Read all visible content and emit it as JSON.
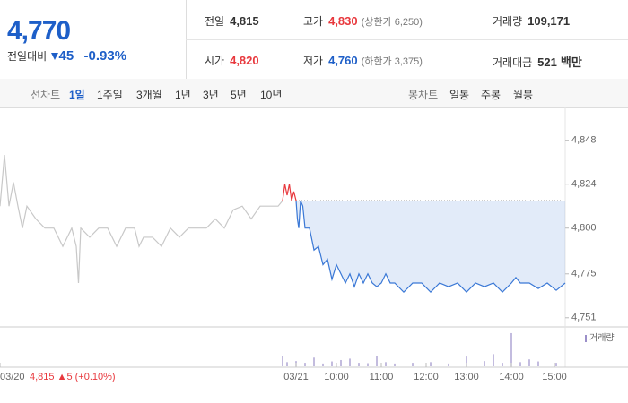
{
  "header": {
    "price": "4,770",
    "change_label": "전일대비",
    "change": "45",
    "change_pct": "-0.93%",
    "stats": [
      [
        {
          "label": "전일",
          "value": "4,815"
        },
        {
          "label": "고가",
          "value": "4,830",
          "note": "(상한가 6,250)"
        },
        {
          "label": "거래량",
          "value": "109,171"
        }
      ],
      [
        {
          "label": "시가",
          "value": "4,820"
        },
        {
          "label": "저가",
          "value": "4,760",
          "note": "(하한가 3,375)"
        },
        {
          "label": "거래대금",
          "value": "521",
          "unit": "백만"
        }
      ]
    ]
  },
  "tabs": {
    "line_label": "선차트",
    "line_tabs": [
      "1일",
      "1주일",
      "3개월",
      "1년",
      "3년",
      "5년",
      "10년"
    ],
    "candle_label": "봉차트",
    "candle_tabs": [
      "일봉",
      "주봉",
      "월봉"
    ]
  },
  "chart_data": {
    "type": "line",
    "ylim": [
      4746,
      4864
    ],
    "yticks": [
      {
        "value": 4751,
        "label": "4,751"
      },
      {
        "value": 4775,
        "label": "4,775"
      },
      {
        "value": 4800,
        "label": "4,800"
      },
      {
        "value": 4824,
        "label": "4,824"
      },
      {
        "value": 4848,
        "label": "4,848"
      }
    ],
    "xlim": [
      0,
      126
    ],
    "xticks": [
      {
        "value": 0,
        "label": "03/20"
      },
      {
        "value": 66,
        "label": "03/21"
      },
      {
        "value": 75,
        "label": "10:00"
      },
      {
        "value": 85,
        "label": "11:00"
      },
      {
        "value": 95,
        "label": "12:00"
      },
      {
        "value": 104,
        "label": "13:00"
      },
      {
        "value": 114,
        "label": "14:00"
      },
      {
        "value": 123.6,
        "label": "15:00"
      }
    ],
    "reference_line": 4815,
    "prev_day_summary": "4,815 ▲5 (+0.10%)",
    "series": [
      {
        "color": "#c8c8c8",
        "x": [
          0,
          1,
          2,
          3,
          4,
          5,
          6,
          8,
          10,
          12,
          14,
          16,
          17,
          17.5,
          18,
          20,
          22,
          24,
          26,
          28,
          30,
          31,
          32,
          34,
          36,
          38,
          40,
          42,
          44,
          46,
          48,
          50,
          52,
          54,
          56,
          58,
          60,
          62,
          63
        ],
        "values": [
          4812,
          4840,
          4812,
          4825,
          4812,
          4800,
          4812,
          4805,
          4800,
          4800,
          4790,
          4800,
          4790,
          4770,
          4800,
          4795,
          4800,
          4800,
          4790,
          4800,
          4800,
          4790,
          4795,
          4795,
          4790,
          4800,
          4795,
          4800,
          4800,
          4800,
          4805,
          4800,
          4810,
          4812,
          4805,
          4812,
          4812,
          4812,
          4815
        ]
      },
      {
        "color": "#e8383d",
        "x": [
          63,
          63.5,
          64,
          64.5,
          65,
          65.5,
          66
        ],
        "values": [
          4815,
          4824,
          4818,
          4824,
          4815,
          4820,
          4815
        ]
      },
      {
        "color": "#3a78d6",
        "area": true,
        "x": [
          66,
          66.3,
          66.6,
          67,
          67.5,
          68,
          69,
          70,
          71,
          72,
          73,
          74,
          75,
          76,
          77,
          78,
          79,
          80,
          81,
          82,
          83,
          84,
          85,
          86,
          87,
          88,
          90,
          92,
          94,
          96,
          98,
          100,
          102,
          104,
          106,
          108,
          110,
          112,
          114,
          115,
          116,
          118,
          120,
          122,
          124,
          126
        ],
        "values": [
          4815,
          4805,
          4800,
          4815,
          4812,
          4800,
          4800,
          4788,
          4790,
          4780,
          4783,
          4772,
          4780,
          4775,
          4770,
          4775,
          4768,
          4775,
          4770,
          4775,
          4770,
          4768,
          4770,
          4775,
          4770,
          4770,
          4765,
          4770,
          4770,
          4765,
          4770,
          4768,
          4770,
          4765,
          4770,
          4768,
          4770,
          4765,
          4770,
          4773,
          4770,
          4770,
          4767,
          4770,
          4766,
          4770
        ]
      }
    ],
    "volume": {
      "label": "거래량",
      "color": "#9b8fc9",
      "ylim": [
        0,
        100
      ],
      "x": [
        63,
        64,
        66,
        68,
        70,
        72,
        74,
        76,
        78,
        80,
        82,
        84,
        86,
        88,
        92,
        96,
        100,
        104,
        108,
        110,
        112,
        114,
        116,
        118,
        120,
        124
      ],
      "values": [
        30,
        12,
        15,
        10,
        25,
        8,
        14,
        18,
        22,
        10,
        9,
        30,
        12,
        8,
        10,
        12,
        8,
        28,
        15,
        35,
        10,
        95,
        12,
        20,
        14,
        10
      ]
    }
  }
}
